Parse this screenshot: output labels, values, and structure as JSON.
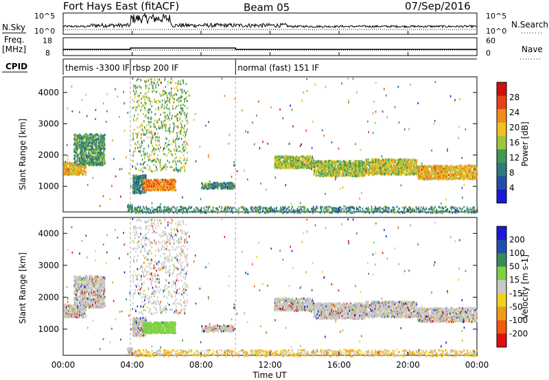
{
  "header": {
    "radar": "Fort Hays East (fitACF)",
    "beam": "Beam 05",
    "date": "07/Sep/2016"
  },
  "top_panel": {
    "nsky_label": "N.Sky",
    "nsearch_label": "N.Search",
    "freq_label_1": "Freq.",
    "freq_label_2": "[MHz]",
    "nave_label": "Nave",
    "cpid_label": "CPID",
    "left_ticks_n": [
      "10^5",
      "10^0"
    ],
    "right_ticks_n": [
      "10^5",
      "10^0"
    ],
    "left_ticks_freq": [
      "18",
      "8"
    ],
    "right_ticks_nave": [
      "60",
      "0"
    ]
  },
  "cpid_segments": [
    {
      "label": "themis -3300 IF",
      "start_hour": 0
    },
    {
      "label": "rbsp 200 IF",
      "start_hour": 3.9
    },
    {
      "label": "normal (fast) 151 IF",
      "start_hour": 10.0
    }
  ],
  "colors": {
    "power_scale": [
      "#1a1ad8",
      "#234fa8",
      "#2f7a7a",
      "#3f9a55",
      "#a2c43a",
      "#f0c020",
      "#f08c1a",
      "#e8401a",
      "#d01010"
    ],
    "velocity_scale": [
      "#1a1ad8",
      "#1f4fb0",
      "#3a8a5a",
      "#7fd040",
      "#c8c8c8",
      "#f0d020",
      "#f09a1a",
      "#f05a10",
      "#e01010"
    ]
  },
  "chart_data": [
    {
      "type": "heatmap",
      "name": "power",
      "ylabel": "Slant Range [km]",
      "colorbar_label": "Power [dB]",
      "colorbar_ticks": [
        "28",
        "24",
        "20",
        "16",
        "12",
        "8",
        "4"
      ],
      "y_ticks": [
        "4000",
        "3000",
        "2000",
        "1000"
      ],
      "xlim_hours": [
        0,
        24
      ],
      "ylim_km": [
        180,
        4500
      ],
      "regions": [
        {
          "t0": 0.0,
          "t1": 1.3,
          "r0": 1400,
          "r1": 1800,
          "level": 0.65
        },
        {
          "t0": 0.6,
          "t1": 2.4,
          "r0": 1700,
          "r1": 2700,
          "level": 0.35
        },
        {
          "t0": 4.0,
          "t1": 4.8,
          "r0": 800,
          "r1": 1400,
          "level": 0.3
        },
        {
          "t0": 4.6,
          "t1": 6.5,
          "r0": 900,
          "r1": 1250,
          "level": 0.75
        },
        {
          "t0": 4.0,
          "t1": 7.2,
          "r0": 1500,
          "r1": 4500,
          "level": 0.45,
          "sparse": true
        },
        {
          "t0": 3.7,
          "t1": 4.0,
          "r0": 250,
          "r1": 450,
          "level": 0.3
        },
        {
          "t0": 3.9,
          "t1": 24.0,
          "r0": 180,
          "r1": 380,
          "level": 0.3
        },
        {
          "t0": 12.2,
          "t1": 14.5,
          "r0": 1600,
          "r1": 2000,
          "level": 0.5
        },
        {
          "t0": 14.5,
          "t1": 17.5,
          "r0": 1350,
          "r1": 1850,
          "level": 0.5
        },
        {
          "t0": 17.5,
          "t1": 20.5,
          "r0": 1400,
          "r1": 1900,
          "level": 0.55
        },
        {
          "t0": 20.5,
          "t1": 24.0,
          "r0": 1250,
          "r1": 1700,
          "level": 0.65
        },
        {
          "t0": 8.0,
          "t1": 9.9,
          "r0": 950,
          "r1": 1150,
          "level": 0.3
        }
      ]
    },
    {
      "type": "heatmap",
      "name": "velocity",
      "ylabel": "Slant Range [km]",
      "colorbar_label": "Velocity [m s-1]",
      "colorbar_ticks": [
        "200",
        "100",
        "50",
        "15",
        "-15",
        "-50",
        "-100",
        "-200"
      ],
      "y_ticks": [
        "4000",
        "3000",
        "2000",
        "1000"
      ],
      "x_ticks": [
        "00:00",
        "04:00",
        "08:00",
        "12:00",
        "16:00",
        "20:00",
        "00:00"
      ],
      "xlabel": "Time UT",
      "xlim_hours": [
        0,
        24
      ],
      "ylim_km": [
        180,
        4500
      ]
    }
  ]
}
